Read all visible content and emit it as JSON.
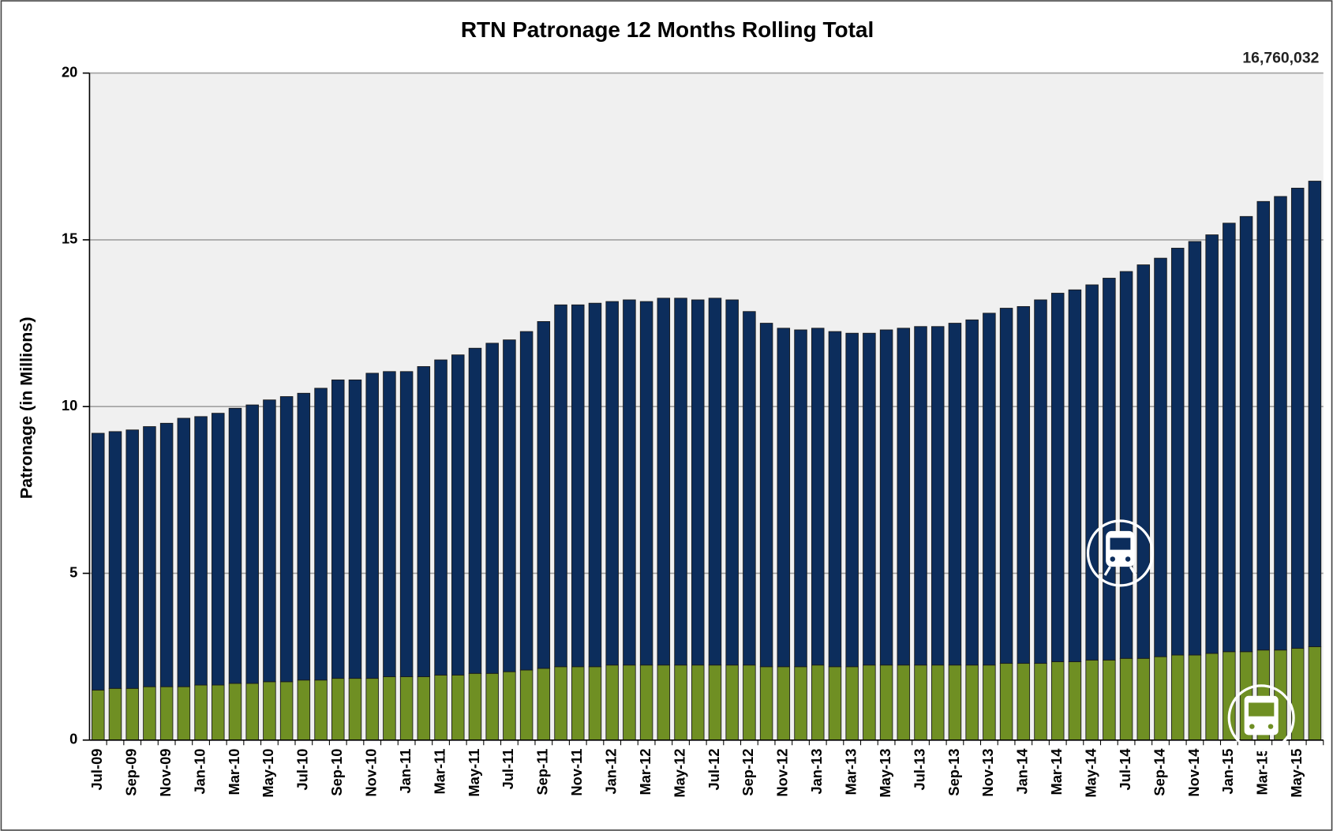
{
  "chart_data": {
    "type": "stacked-bar",
    "title": "RTN Patronage 12 Months Rolling Total",
    "y_label": "Patronage (in Millions)",
    "annotation": "16,760,032",
    "categories": [
      "Jul-09",
      null,
      "Sep-09",
      null,
      "Nov-09",
      null,
      "Jan-10",
      null,
      "Mar-10",
      null,
      "May-10",
      null,
      "Jul-10",
      null,
      "Sep-10",
      null,
      "Nov-10",
      null,
      "Jan-11",
      null,
      "Mar-11",
      null,
      "May-11",
      null,
      "Jul-11",
      null,
      "Sep-11",
      null,
      "Nov-11",
      null,
      "Jan-12",
      null,
      "Mar-12",
      null,
      "May-12",
      null,
      "Jul-12",
      null,
      "Sep-12",
      null,
      "Nov-12",
      null,
      "Jan-13",
      null,
      "Mar-13",
      null,
      "May-13",
      null,
      "Jul-13",
      null,
      "Sep-13",
      null,
      "Nov-13",
      null,
      "Jan-14",
      null,
      "Mar-14",
      null,
      "May-14",
      null,
      "Jul-14",
      null,
      "Sep-14",
      null,
      "Nov-14",
      null,
      "Jan-15",
      null,
      "Mar-15",
      null,
      "May-15",
      null
    ],
    "series": [
      {
        "color": "#6f8f23",
        "values": [
          1.5,
          1.55,
          1.55,
          1.6,
          1.6,
          1.6,
          1.65,
          1.65,
          1.7,
          1.7,
          1.75,
          1.75,
          1.8,
          1.8,
          1.85,
          1.85,
          1.85,
          1.9,
          1.9,
          1.9,
          1.95,
          1.95,
          2.0,
          2.0,
          2.05,
          2.1,
          2.15,
          2.2,
          2.2,
          2.2,
          2.25,
          2.25,
          2.25,
          2.25,
          2.25,
          2.25,
          2.25,
          2.25,
          2.25,
          2.2,
          2.2,
          2.2,
          2.25,
          2.2,
          2.2,
          2.25,
          2.25,
          2.25,
          2.25,
          2.25,
          2.25,
          2.25,
          2.25,
          2.3,
          2.3,
          2.3,
          2.35,
          2.35,
          2.4,
          2.4,
          2.45,
          2.45,
          2.5,
          2.55,
          2.55,
          2.6,
          2.65,
          2.65,
          2.7,
          2.7,
          2.75,
          2.8
        ]
      },
      {
        "color": "#0c2d5c",
        "values": [
          7.7,
          7.7,
          7.75,
          7.8,
          7.9,
          8.05,
          8.05,
          8.15,
          8.25,
          8.35,
          8.45,
          8.55,
          8.6,
          8.75,
          8.95,
          8.95,
          9.15,
          9.15,
          9.15,
          9.3,
          9.45,
          9.6,
          9.75,
          9.9,
          9.95,
          10.15,
          10.4,
          10.85,
          10.85,
          10.9,
          10.9,
          10.95,
          10.9,
          11.0,
          11.0,
          10.95,
          11.0,
          10.95,
          10.6,
          10.3,
          10.15,
          10.1,
          10.1,
          10.05,
          10.0,
          9.95,
          10.05,
          10.1,
          10.15,
          10.15,
          10.25,
          10.35,
          10.55,
          10.65,
          10.7,
          10.9,
          11.05,
          11.15,
          11.25,
          11.45,
          11.6,
          11.8,
          11.95,
          12.2,
          12.4,
          12.55,
          12.85,
          13.05,
          13.45,
          13.6,
          13.8,
          13.96
        ]
      }
    ],
    "ylim": [
      0,
      20
    ],
    "yticks": [
      0,
      5,
      10,
      15,
      20
    ],
    "grid": true,
    "background": "#f0f0f0"
  }
}
